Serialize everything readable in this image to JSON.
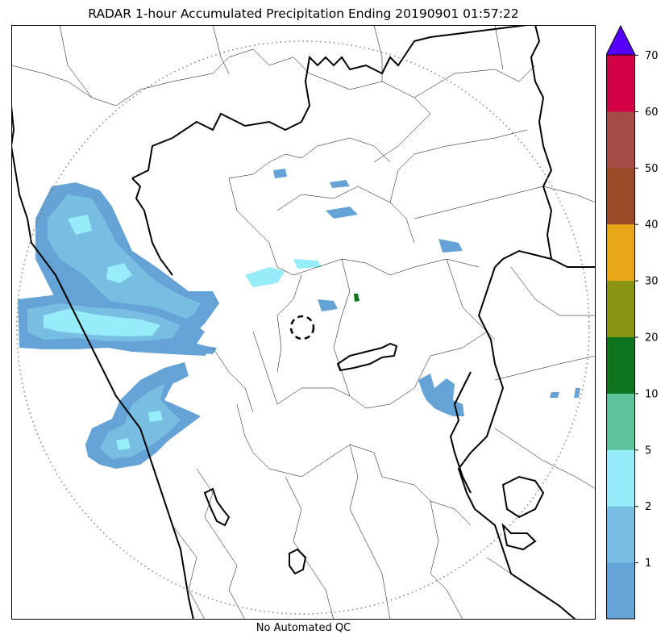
{
  "title": "RADAR 1-hour Accumulated Precipitation Ending 20190901 01:57:22",
  "footer": "No Automated QC",
  "colorbar": {
    "levels": [
      {
        "label": "",
        "color": "#65a3d6"
      },
      {
        "label": "1",
        "color": "#78bde2"
      },
      {
        "label": "2",
        "color": "#97ecf9"
      },
      {
        "label": "5",
        "color": "#5dc49b"
      },
      {
        "label": "10",
        "color": "#0d731d"
      },
      {
        "label": "20",
        "color": "#8a9414"
      },
      {
        "label": "30",
        "color": "#e8a619"
      },
      {
        "label": "40",
        "color": "#9a4b28"
      },
      {
        "label": "50",
        "color": "#a54b45"
      },
      {
        "label": "60",
        "color": "#d40046"
      },
      {
        "label": "70",
        "color": "#d40046"
      }
    ],
    "extend_color": "#5500ff",
    "tick_labels": [
      "1",
      "2",
      "5",
      "10",
      "20",
      "30",
      "40",
      "50",
      "60",
      "70"
    ]
  },
  "map": {
    "range_ring": "dotted",
    "radar_marker": "dashed-circle"
  }
}
